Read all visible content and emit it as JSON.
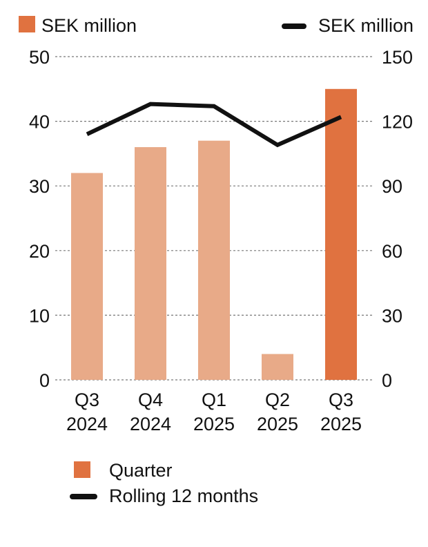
{
  "chart_data": {
    "type": "bar",
    "categories": [
      "Q3 2024",
      "Q4 2024",
      "Q1 2025",
      "Q2 2025",
      "Q3 2025"
    ],
    "category_lines": [
      [
        "Q3",
        "2024"
      ],
      [
        "Q4",
        "2024"
      ],
      [
        "Q1",
        "2025"
      ],
      [
        "Q2",
        "2025"
      ],
      [
        "Q3",
        "2025"
      ]
    ],
    "series": [
      {
        "name": "Quarter",
        "axis": "left",
        "kind": "bar",
        "values": [
          32,
          36,
          37,
          4,
          45
        ]
      },
      {
        "name": "Rolling 12 months",
        "axis": "right",
        "kind": "line",
        "values": [
          114,
          128,
          127,
          109,
          122
        ]
      }
    ],
    "left_axis": {
      "label": "SEK million",
      "ylim": [
        0,
        50
      ],
      "ticks": [
        0,
        10,
        20,
        30,
        40,
        50
      ]
    },
    "right_axis": {
      "label": "SEK million",
      "ylim": [
        0,
        150
      ],
      "ticks": [
        0,
        30,
        60,
        90,
        120,
        150
      ]
    },
    "legend": [
      {
        "label": "Quarter",
        "marker": "square"
      },
      {
        "label": "Rolling 12 months",
        "marker": "line"
      }
    ],
    "grid": true,
    "colors": {
      "bar_highlight": "#e07240",
      "bar_light": "#e8aa88",
      "line": "#111111",
      "grid": "#777777"
    }
  }
}
